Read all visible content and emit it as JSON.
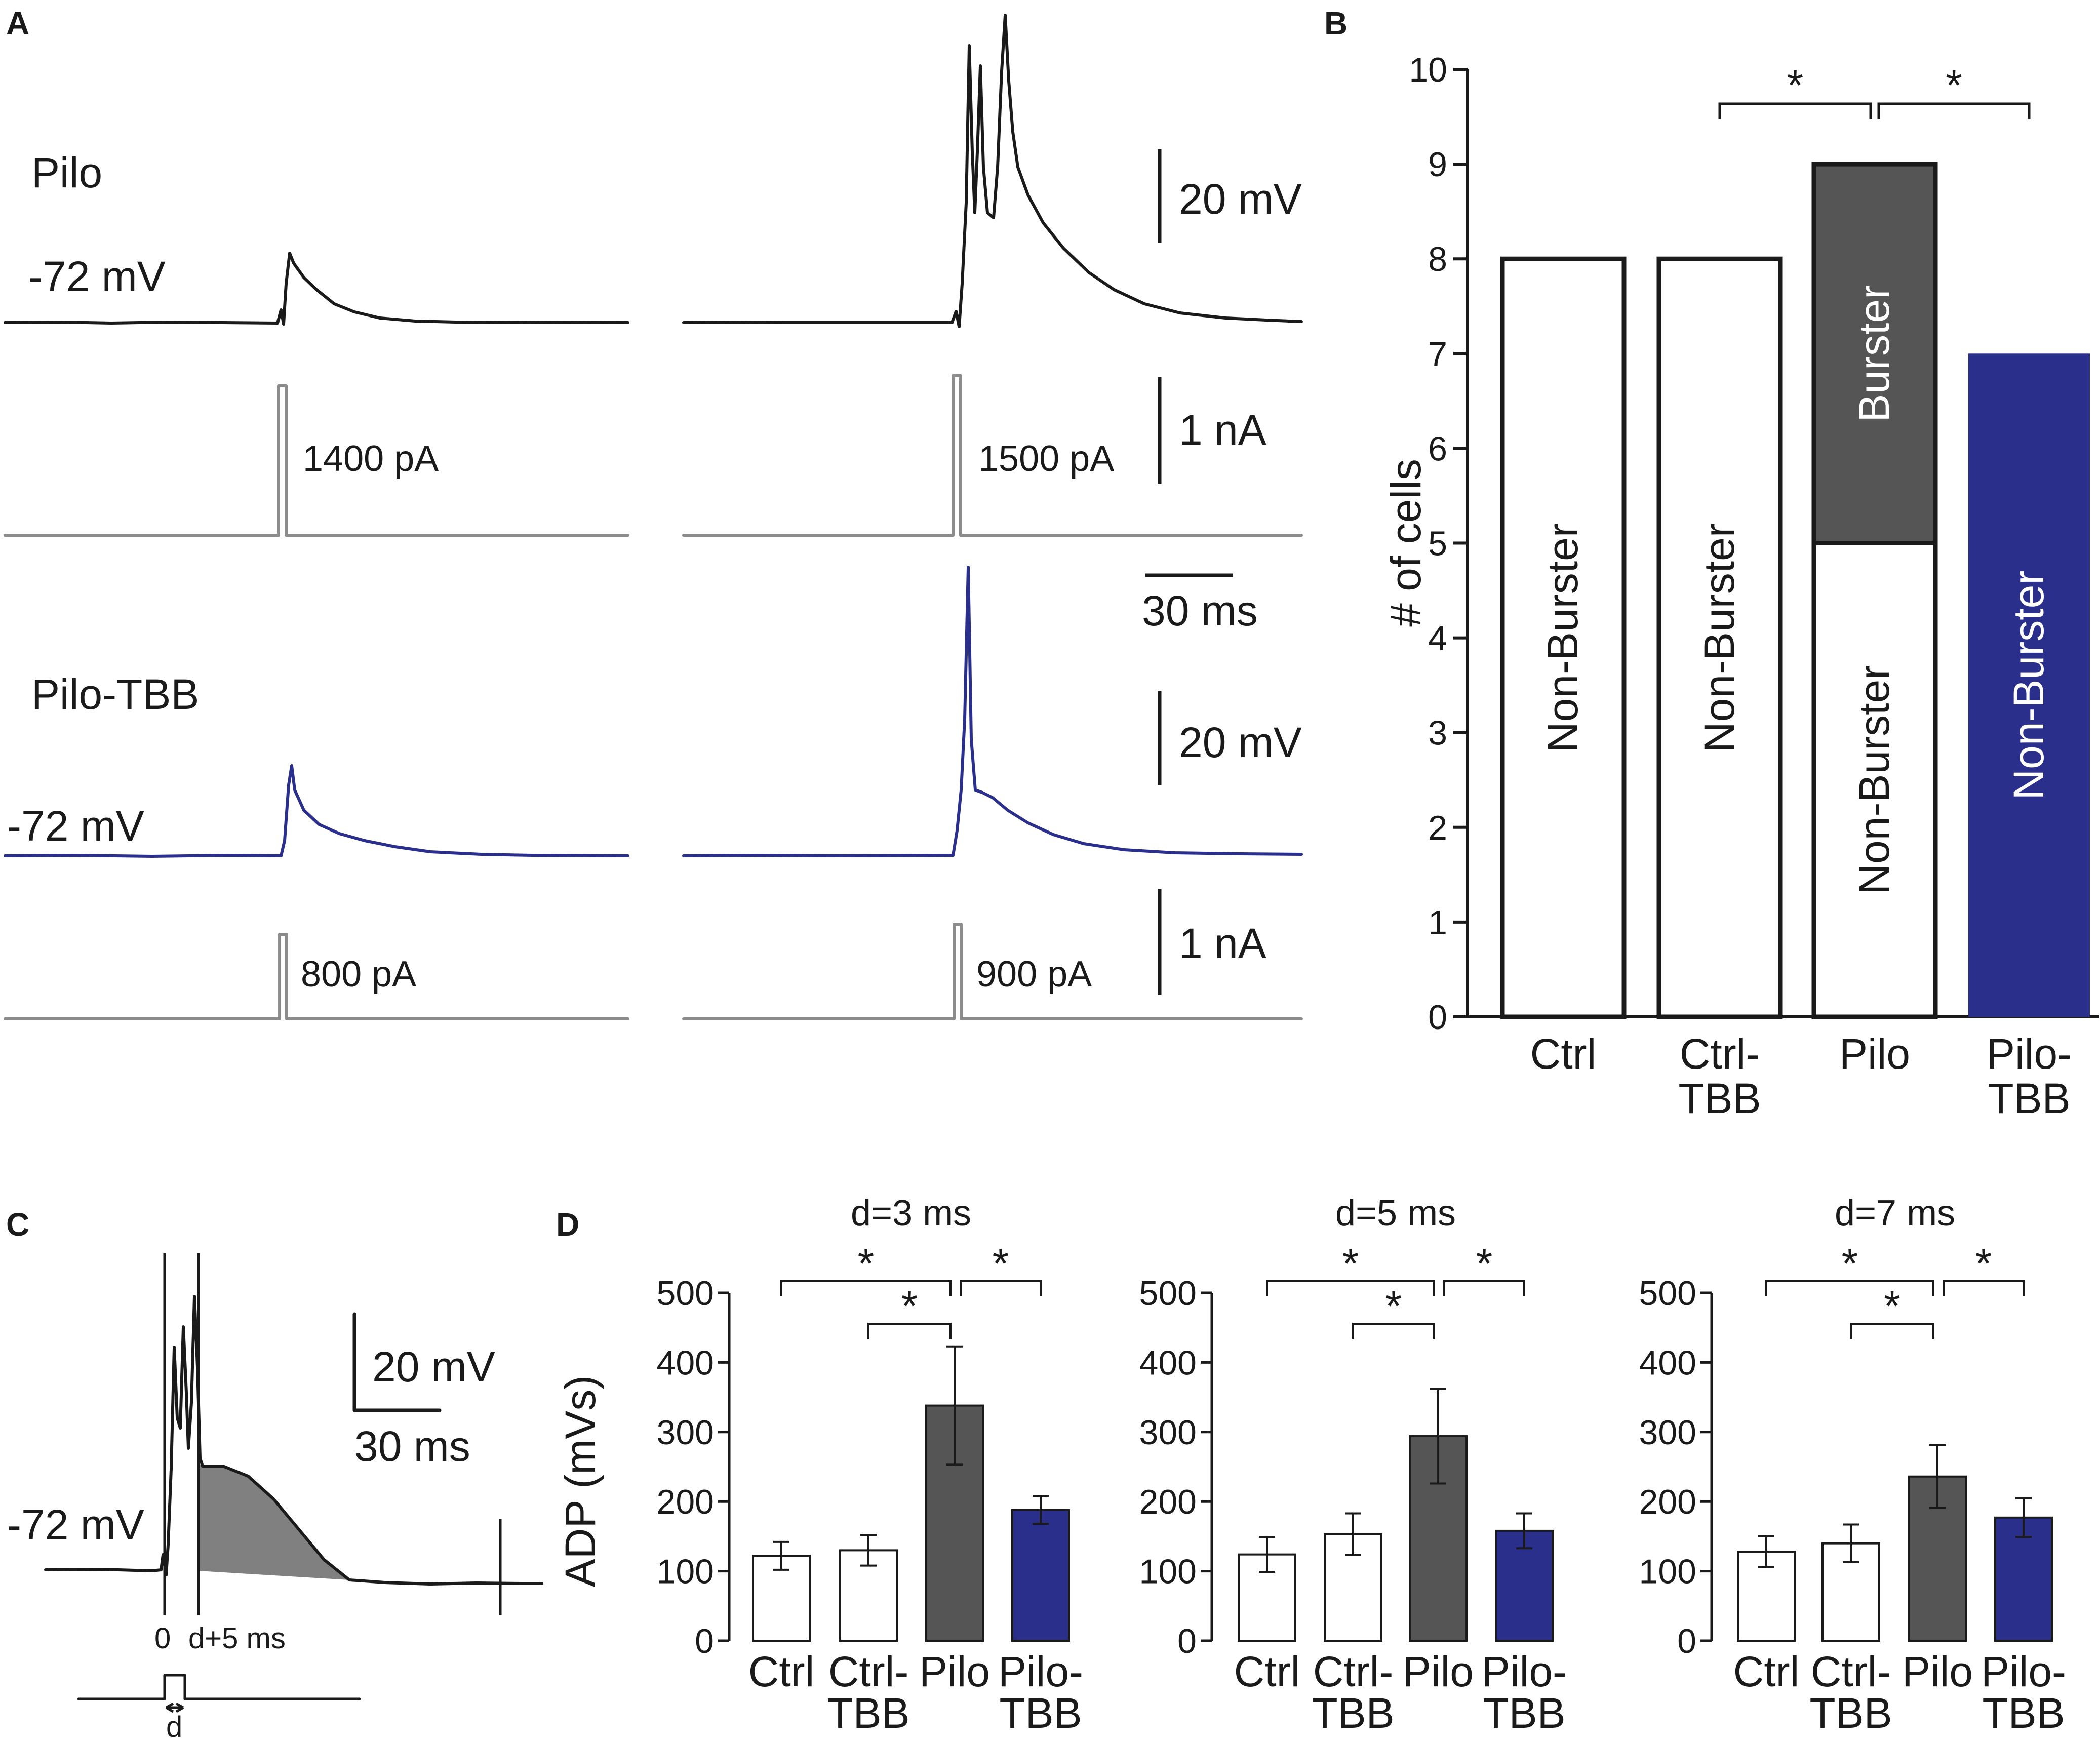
{
  "panel_labels": {
    "a": "A",
    "b": "B",
    "c": "C",
    "d": "D"
  },
  "panel_a": {
    "pilo_label": "Pilo",
    "pilo_tbb_label": "Pilo-TBB",
    "rest_potential_top": "-72 mV",
    "rest_potential_bottom": "-72 mV",
    "scale_voltage_top": "20 mV",
    "scale_current_top": "1 nA",
    "scale_time": "30 ms",
    "scale_voltage_bottom": "20 mV",
    "scale_current_bottom": "1 nA",
    "currents": [
      "1400 pA",
      "1500 pA",
      "800 pA",
      "900 pA"
    ],
    "colors": {
      "pilo": "#1a1a1a",
      "pilo_tbb": "#2b2f8c",
      "current": "#8c8c8c"
    }
  },
  "panel_c": {
    "rest_potential": "-72 mV",
    "scale_voltage": "20 mV",
    "scale_time": "30 ms",
    "marker_start": "0",
    "marker_end": "d+5 ms",
    "pulse_label": "d",
    "shade_color": "#808080"
  },
  "chart_data": [
    {
      "type": "bar",
      "stacked": true,
      "panel": "B",
      "ylabel": "# of cells",
      "ylim": [
        0,
        10
      ],
      "yticks": [
        0,
        1,
        2,
        3,
        4,
        5,
        6,
        7,
        8,
        9,
        10
      ],
      "categories": [
        [
          "Ctrl"
        ],
        [
          "Ctrl-",
          "TBB"
        ],
        [
          "Pilo"
        ],
        [
          "Pilo-",
          "TBB"
        ]
      ],
      "series": [
        {
          "name": "Non-Burster",
          "values": [
            8,
            8,
            5,
            7
          ],
          "labels": [
            "Non-Burster",
            "Non-Burster",
            "Non-Burster",
            "Non-Burster"
          ]
        },
        {
          "name": "Burster",
          "values": [
            0,
            0,
            4,
            0
          ],
          "labels": [
            "",
            "",
            "Burster",
            ""
          ]
        }
      ],
      "colors": {
        "white": "#ffffff",
        "dark": "#555555",
        "blue": "#2b2f8c"
      },
      "significance": [
        {
          "from": 1,
          "to": 2,
          "label": "*"
        },
        {
          "from": 2,
          "to": 3,
          "label": "*"
        }
      ]
    },
    {
      "type": "bar",
      "panel": "D",
      "title": "d=3 ms",
      "ylabel": "ADP (mVs)",
      "ylim": [
        0,
        500
      ],
      "yticks": [
        0,
        100,
        200,
        300,
        400,
        500
      ],
      "categories": [
        [
          "Ctrl"
        ],
        [
          "Ctrl-",
          "TBB"
        ],
        [
          "Pilo"
        ],
        [
          "Pilo-",
          "TBB"
        ]
      ],
      "values": [
        122,
        130,
        338,
        188
      ],
      "errors": [
        20,
        22,
        85,
        20
      ],
      "colors": [
        "#ffffff",
        "#ffffff",
        "#555555",
        "#2b2f8c"
      ],
      "significance": [
        {
          "from": 0,
          "to": 2,
          "label": "*"
        },
        {
          "from": 1,
          "to": 2,
          "label": "*"
        },
        {
          "from": 2,
          "to": 3,
          "label": "*"
        }
      ]
    },
    {
      "type": "bar",
      "panel": "D",
      "title": "d=5 ms",
      "ylim": [
        0,
        500
      ],
      "yticks": [
        0,
        100,
        200,
        300,
        400,
        500
      ],
      "categories": [
        [
          "Ctrl"
        ],
        [
          "Ctrl-",
          "TBB"
        ],
        [
          "Pilo"
        ],
        [
          "Pilo-",
          "TBB"
        ]
      ],
      "values": [
        124,
        153,
        294,
        158
      ],
      "errors": [
        25,
        30,
        68,
        25
      ],
      "colors": [
        "#ffffff",
        "#ffffff",
        "#555555",
        "#2b2f8c"
      ],
      "significance": [
        {
          "from": 0,
          "to": 2,
          "label": "*"
        },
        {
          "from": 1,
          "to": 2,
          "label": "*"
        },
        {
          "from": 2,
          "to": 3,
          "label": "*"
        }
      ]
    },
    {
      "type": "bar",
      "panel": "D",
      "title": "d=7 ms",
      "ylim": [
        0,
        500
      ],
      "yticks": [
        0,
        100,
        200,
        300,
        400,
        500
      ],
      "categories": [
        [
          "Ctrl"
        ],
        [
          "Ctrl-",
          "TBB"
        ],
        [
          "Pilo"
        ],
        [
          "Pilo-",
          "TBB"
        ]
      ],
      "values": [
        128,
        140,
        236,
        177
      ],
      "errors": [
        22,
        27,
        45,
        28
      ],
      "colors": [
        "#ffffff",
        "#ffffff",
        "#555555",
        "#2b2f8c"
      ],
      "significance": [
        {
          "from": 0,
          "to": 2,
          "label": "*"
        },
        {
          "from": 1,
          "to": 2,
          "label": "*"
        },
        {
          "from": 2,
          "to": 3,
          "label": "*"
        }
      ]
    }
  ]
}
